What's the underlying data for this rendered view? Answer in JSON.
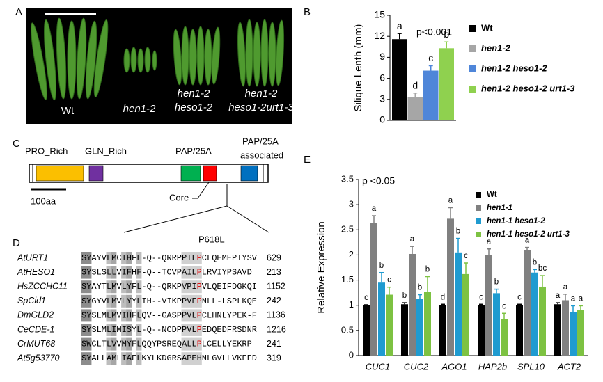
{
  "panels": [
    "A",
    "B",
    "C",
    "D",
    "E"
  ],
  "photo": {
    "labels": [
      [
        "Wt"
      ],
      [
        "hen1-2"
      ],
      [
        "hen1-2",
        "heso1-2"
      ],
      [
        "hen1-2",
        "heso1-2urt1-3"
      ]
    ]
  },
  "domain_diagram": {
    "domains": [
      "PRO_Rich",
      "GLN_Rich",
      "PAP/25A"
    ],
    "associated": [
      "PAP/25A",
      "associated"
    ],
    "core": "Core",
    "scale": "100aa",
    "mutation": "P618L"
  },
  "alignment": {
    "rows": [
      {
        "name": "AtURT1",
        "sequence": "SYAYVLMCIHFL-Q--QRRPPILPCLQEMEPTYSV",
        "position": 629
      },
      {
        "name": "AtHESO1",
        "sequence": "SYSLSLLVIFHF-Q--TCVPAILPLRVIYPSAVD",
        "position": 213
      },
      {
        "name": "HsZCCHC11",
        "sequence": "SYAYTLMVLYFL-Q--QRKPVPIPVLQEIFDGKQI",
        "position": 1152
      },
      {
        "name": "SpCid1",
        "sequence": "SYGYVLMVLYYLIH--VIKPPVFPNLL-LSPLKQE",
        "position": 242
      },
      {
        "name": "DmGLD2",
        "sequence": "SYSLMLMVIHFLQV--GASPPVLPCLHNLYPEK-F",
        "position": 1136
      },
      {
        "name": "CeCDE-1",
        "sequence": "SYSLMLIMISYL-Q--NCDPPVLPEDQEDFRSDNR",
        "position": 1216
      },
      {
        "name": "CrMUT68",
        "sequence": "SWCLTLVVMYFLQQYPSREQALLPLCELLYEKRP",
        "position": 241
      },
      {
        "name": "At5g53770",
        "sequence": "SYALLAMLIAFLKYLKDGRSAPEHNLGVLLVKFFD",
        "position": 319
      }
    ]
  },
  "chart_data": [
    {
      "type": "bar",
      "ylabel": "Silique Lenth (mm)",
      "annotation": "p<0.001",
      "categories": [
        null
      ],
      "series": [
        {
          "name": "Wt",
          "color": "#000000",
          "values": [
            11.6
          ],
          "errors": [
            0.8
          ],
          "letters": [
            "a"
          ]
        },
        {
          "name": "hen1-2",
          "color": "#a6a6a6",
          "values": [
            3.3
          ],
          "errors": [
            0.6
          ],
          "letters": [
            "d"
          ]
        },
        {
          "name": "hen1-2 heso1-2",
          "color": "#4f86d9",
          "values": [
            7.1
          ],
          "errors": [
            0.7
          ],
          "letters": [
            "c"
          ]
        },
        {
          "name": "hen1-2 heso1-2 urt1-3",
          "color": "#8fd14f",
          "values": [
            10.3
          ],
          "errors": [
            0.9
          ],
          "letters": [
            "b"
          ]
        }
      ],
      "ylim": [
        0,
        15
      ],
      "yticks": [
        0,
        3,
        6,
        9,
        12,
        15
      ]
    },
    {
      "type": "bar",
      "ylabel": "Relative Expression",
      "annotation": "p <0.05",
      "categories": [
        "CUC1",
        "CUC2",
        "AGO1",
        "HAP2b",
        "SPL10",
        "ACT2"
      ],
      "series": [
        {
          "name": "Wt",
          "color": "#000000",
          "values": [
            1.0,
            1.02,
            1.0,
            1.0,
            1.0,
            1.02
          ],
          "errors": [
            0.01,
            0.03,
            0.02,
            0.02,
            0.02,
            0.03
          ],
          "letters": [
            "c",
            "b",
            "d",
            "c",
            "c",
            "a"
          ]
        },
        {
          "name": "hen1-1",
          "color": "#808080",
          "values": [
            2.63,
            2.02,
            2.72,
            2.0,
            2.09,
            1.1
          ],
          "errors": [
            0.15,
            0.15,
            0.22,
            0.12,
            0.06,
            0.12
          ],
          "letters": [
            "a",
            "a",
            "a",
            "a",
            "a",
            "a"
          ]
        },
        {
          "name": "hen1-1 heso1-2",
          "color": "#1f9bd0",
          "values": [
            1.45,
            1.13,
            2.05,
            1.24,
            1.65,
            0.87
          ],
          "errors": [
            0.2,
            0.08,
            0.28,
            0.08,
            0.06,
            0.12
          ],
          "letters": [
            "b",
            "b",
            "b",
            "b",
            "b",
            "a"
          ]
        },
        {
          "name": "hen1-1 heso1-2 urt1-3",
          "color": "#7dc242",
          "values": [
            1.21,
            1.27,
            1.62,
            0.72,
            1.37,
            0.91
          ],
          "errors": [
            0.15,
            0.3,
            0.22,
            0.12,
            0.22,
            0.08
          ],
          "letters": [
            "c",
            "b",
            "c",
            "c",
            "bc",
            "a"
          ]
        }
      ],
      "ylim": [
        0,
        3.5
      ],
      "yticks": [
        0,
        0.5,
        1,
        1.5,
        2,
        2.5,
        3,
        3.5
      ]
    }
  ]
}
